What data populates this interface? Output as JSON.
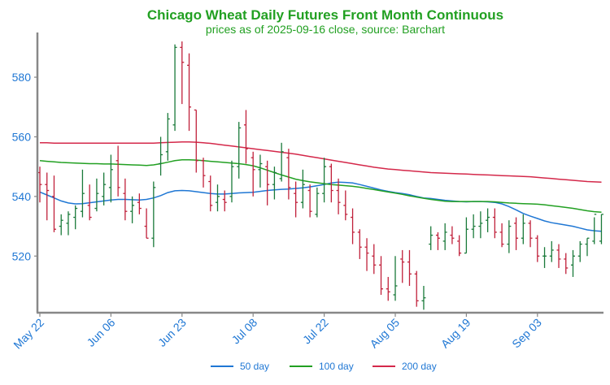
{
  "chart_data": {
    "type": "ohlc",
    "title": "Chicago Wheat Daily Futures Front Month Continuous",
    "subtitle": "prices as of 2025-09-16 close, source: Barchart",
    "ylim": [
      501,
      595
    ],
    "y_ticks": [
      520,
      540,
      560,
      580
    ],
    "x_tick_labels": [
      "May 22",
      "Jun 06",
      "Jun 23",
      "Jul 08",
      "Jul 22",
      "Aug 05",
      "Aug 19",
      "Sep 03"
    ],
    "x_tick_indices": [
      0,
      10,
      20,
      30,
      40,
      50,
      60,
      70
    ],
    "grid": false,
    "legend_placement": "bottom-center",
    "colors": {
      "title": "#22a022",
      "text": "#1f77d4",
      "up": "#1a7a3a",
      "down": "#c0203a",
      "ma50": "#1f77d4",
      "ma100": "#22a022",
      "ma200": "#d4284a",
      "axis": "#888888"
    },
    "bars": [
      [
        548,
        550,
        538,
        544
      ],
      [
        544,
        548,
        532,
        542
      ],
      [
        540,
        547,
        528,
        529
      ],
      [
        530,
        534,
        527,
        532
      ],
      [
        531,
        535,
        527,
        534
      ],
      [
        533,
        537,
        529,
        536
      ],
      [
        535,
        549,
        533,
        541
      ],
      [
        537,
        544,
        532,
        533
      ],
      [
        536,
        546,
        535,
        541
      ],
      [
        540,
        548,
        537,
        544
      ],
      [
        543,
        554,
        538,
        549
      ],
      [
        552,
        557,
        540,
        543
      ],
      [
        541,
        546,
        532,
        535
      ],
      [
        535,
        540,
        531,
        537
      ],
      [
        538,
        541,
        534,
        536
      ],
      [
        530,
        536,
        526,
        526
      ],
      [
        526,
        545,
        523,
        543
      ],
      [
        551,
        560,
        547,
        554
      ],
      [
        555,
        568,
        552,
        566
      ],
      [
        564,
        591,
        562,
        590
      ],
      [
        590,
        592,
        571,
        585
      ],
      [
        584,
        588,
        562,
        570
      ],
      [
        569,
        569,
        548,
        552
      ],
      [
        552,
        553,
        543,
        547
      ],
      [
        545,
        547,
        535,
        537
      ],
      [
        538,
        544,
        535,
        540
      ],
      [
        539,
        542,
        535,
        538
      ],
      [
        540,
        552,
        538,
        550
      ],
      [
        550,
        565,
        546,
        563
      ],
      [
        564,
        569,
        551,
        556
      ],
      [
        553,
        555,
        540,
        549
      ],
      [
        549,
        554,
        543,
        551
      ],
      [
        550,
        552,
        537,
        544
      ],
      [
        544,
        550,
        539,
        548
      ],
      [
        546,
        558,
        545,
        555
      ],
      [
        553,
        556,
        539,
        543
      ],
      [
        541,
        545,
        533,
        538
      ],
      [
        538,
        549,
        536,
        544
      ],
      [
        542,
        544,
        533,
        535
      ],
      [
        534,
        543,
        533,
        541
      ],
      [
        541,
        553,
        538,
        550
      ],
      [
        550,
        551,
        538,
        542
      ],
      [
        542,
        546,
        534,
        538
      ],
      [
        537,
        542,
        532,
        534
      ],
      [
        533,
        536,
        524,
        528
      ],
      [
        528,
        529,
        519,
        523
      ],
      [
        523,
        526,
        515,
        521
      ],
      [
        520,
        524,
        514,
        517
      ],
      [
        517,
        520,
        507,
        509
      ],
      [
        509,
        513,
        505,
        508
      ],
      [
        507,
        520,
        505,
        510
      ],
      [
        519,
        522,
        511,
        518
      ],
      [
        518,
        522,
        510,
        514
      ],
      [
        514,
        515,
        503,
        505
      ],
      [
        505,
        510,
        502,
        506
      ],
      [
        524,
        530,
        522,
        527
      ],
      [
        527,
        528,
        522,
        526
      ],
      [
        525,
        531,
        522,
        528
      ],
      [
        527,
        530,
        524,
        526
      ],
      [
        525,
        527,
        520,
        521
      ],
      [
        521,
        533,
        521,
        529
      ],
      [
        529,
        534,
        526,
        530
      ],
      [
        530,
        535,
        526,
        531
      ],
      [
        532,
        536,
        528,
        533
      ],
      [
        533,
        536,
        526,
        528
      ],
      [
        528,
        531,
        523,
        524
      ],
      [
        524,
        532,
        521,
        530
      ],
      [
        531,
        533,
        522,
        526
      ],
      [
        526,
        534,
        524,
        531
      ],
      [
        531,
        532,
        523,
        526
      ],
      [
        526,
        527,
        518,
        520
      ],
      [
        520,
        523,
        516,
        520
      ],
      [
        520,
        525,
        518,
        522
      ],
      [
        522,
        524,
        516,
        519
      ],
      [
        519,
        521,
        514,
        516
      ],
      [
        517,
        522,
        513,
        520
      ],
      [
        520,
        525,
        518,
        524
      ],
      [
        524,
        526,
        520,
        526
      ],
      [
        525,
        533,
        524,
        534
      ],
      [
        525,
        534,
        524,
        534
      ]
    ],
    "series": [
      {
        "name": "50 day",
        "values": [
          541.5,
          540.5,
          539.5,
          538.5,
          537.8,
          537.5,
          537.6,
          537.9,
          538.2,
          538.5,
          538.8,
          539.0,
          539.0,
          538.9,
          538.8,
          539.0,
          539.5,
          540.3,
          541.3,
          541.9,
          542.0,
          541.9,
          541.6,
          541.3,
          541.0,
          540.8,
          540.8,
          541.0,
          541.2,
          541.3,
          541.4,
          541.7,
          542.0,
          542.2,
          542.4,
          542.5,
          542.7,
          542.9,
          543.2,
          543.6,
          544.0,
          544.5,
          544.8,
          544.7,
          544.5,
          544.0,
          543.4,
          542.8,
          542.2,
          541.7,
          541.3,
          541.0,
          540.6,
          540.0,
          539.5,
          539.3,
          539.0,
          538.7,
          538.5,
          538.3,
          538.2,
          538.3,
          538.3,
          538.2,
          538.0,
          537.5,
          536.6,
          535.5,
          534.3,
          533.4,
          532.6,
          531.8,
          531.2,
          530.8,
          530.4,
          530.0,
          529.4,
          528.8,
          528.5,
          528.3
        ]
      },
      {
        "name": "100 day",
        "values": [
          552.0,
          551.8,
          551.6,
          551.4,
          551.3,
          551.2,
          551.1,
          551.0,
          551.0,
          550.9,
          550.9,
          550.8,
          550.7,
          550.6,
          550.5,
          550.4,
          550.6,
          551.0,
          551.5,
          552.0,
          552.3,
          552.3,
          552.2,
          552.0,
          551.8,
          551.6,
          551.4,
          551.2,
          551.0,
          550.7,
          550.3,
          549.6,
          548.8,
          548.0,
          547.2,
          546.5,
          545.8,
          545.3,
          544.9,
          544.6,
          544.3,
          544.0,
          543.8,
          543.6,
          543.4,
          543.1,
          542.7,
          542.3,
          541.9,
          541.5,
          541.1,
          540.7,
          540.2,
          539.8,
          539.4,
          539.0,
          538.7,
          538.4,
          538.3,
          538.3,
          538.3,
          538.3,
          538.3,
          538.3,
          538.2,
          538.0,
          537.8,
          537.7,
          537.6,
          537.5,
          537.4,
          537.2,
          536.9,
          536.6,
          536.3,
          536.0,
          535.6,
          535.2,
          534.9,
          534.7
        ]
      },
      {
        "name": "200 day",
        "values": [
          558.0,
          558.0,
          557.9,
          557.9,
          557.9,
          557.9,
          557.9,
          557.9,
          557.9,
          557.9,
          557.9,
          557.9,
          557.9,
          557.9,
          557.9,
          557.9,
          557.9,
          558.0,
          558.1,
          558.2,
          558.3,
          558.3,
          558.2,
          558.0,
          557.8,
          557.5,
          557.2,
          556.9,
          556.6,
          556.3,
          556.0,
          555.7,
          555.4,
          555.1,
          554.8,
          554.5,
          554.2,
          553.8,
          553.4,
          553.0,
          552.6,
          552.2,
          551.8,
          551.4,
          551.0,
          550.6,
          550.2,
          549.8,
          549.5,
          549.2,
          549.0,
          548.8,
          548.6,
          548.4,
          548.2,
          548.0,
          547.9,
          547.8,
          547.7,
          547.6,
          547.5,
          547.4,
          547.3,
          547.2,
          547.1,
          547.0,
          546.9,
          546.8,
          546.7,
          546.6,
          546.4,
          546.2,
          546.0,
          545.8,
          545.6,
          545.4,
          545.2,
          545.0,
          544.9,
          544.8
        ]
      }
    ]
  }
}
